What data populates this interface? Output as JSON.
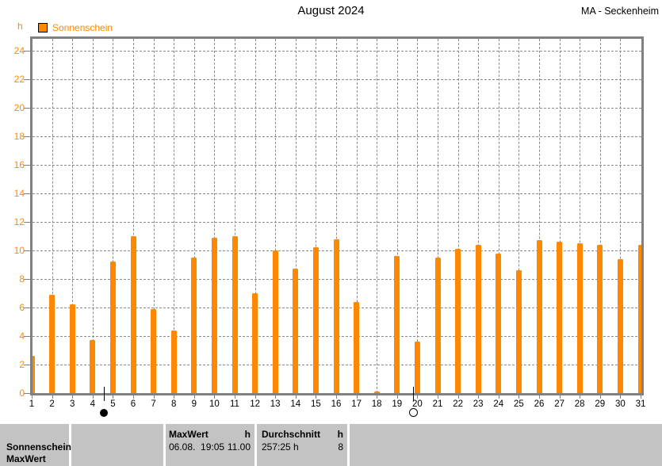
{
  "header": {
    "title": "August 2024",
    "station": "MA - Seckenheim",
    "axis_unit": "h",
    "legend_label": "Sonnenschein"
  },
  "chart_data": {
    "type": "bar",
    "title": "August 2024",
    "series_name": "Sonnenschein",
    "xlabel": "",
    "ylabel": "h",
    "ylim": [
      0,
      25
    ],
    "yticks": [
      0,
      2,
      4,
      6,
      8,
      10,
      12,
      14,
      16,
      18,
      20,
      22,
      24
    ],
    "grid": "dashed",
    "legend_position": "top-left",
    "bar_color": "#ff8800",
    "categories": [
      1,
      2,
      3,
      4,
      5,
      6,
      7,
      8,
      9,
      10,
      11,
      12,
      13,
      14,
      15,
      16,
      17,
      18,
      19,
      20,
      21,
      22,
      23,
      24,
      25,
      26,
      27,
      28,
      29,
      30,
      31
    ],
    "values": [
      2.6,
      6.9,
      6.2,
      3.7,
      9.2,
      11.0,
      5.9,
      4.4,
      9.5,
      10.9,
      11.0,
      7.0,
      10.0,
      8.7,
      10.2,
      10.8,
      6.4,
      0.1,
      9.6,
      3.6,
      9.5,
      10.1,
      10.4,
      9.8,
      8.6,
      10.7,
      10.6,
      10.5,
      10.4,
      9.4,
      10.4
    ],
    "moon_markers": [
      {
        "name": "new-moon-marker",
        "symbol": "filled-circle",
        "day": 4.55
      },
      {
        "name": "full-moon-marker",
        "symbol": "open-circle",
        "day": 19.8
      }
    ]
  },
  "table": {
    "row_label_line1": "Sonnenschein",
    "row_label_line2": "MaxWert",
    "maxwert": {
      "header": "MaxWert",
      "unit_header": "h",
      "date_time": "06.08.  19:05",
      "value": "11.00"
    },
    "durchschnitt": {
      "header": "Durchschnitt",
      "unit_header": "h",
      "total": "257:25 h",
      "value": "8"
    }
  },
  "colors": {
    "bar_orange": "#ff8800",
    "axis_gray": "#808080",
    "table_silver": "#c3c3c3",
    "text_black": "#000000"
  }
}
